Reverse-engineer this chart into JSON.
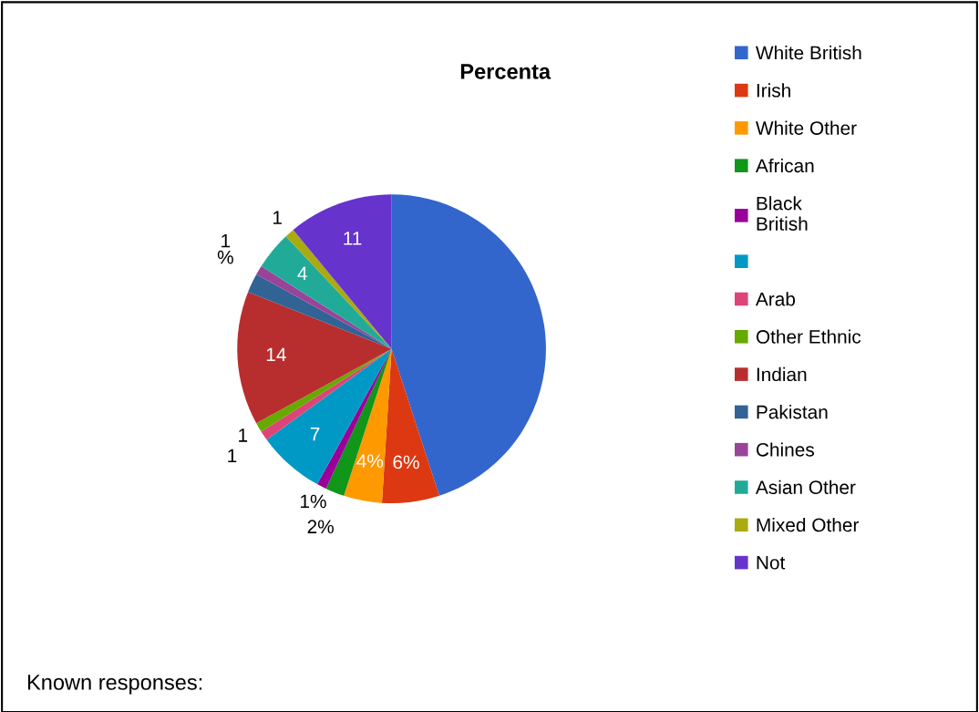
{
  "chart_data": {
    "type": "pie",
    "title": "Percenta",
    "categories": [
      "White British",
      "Irish",
      "White Other",
      "African",
      "Black\nBritish",
      null,
      "Arab",
      "Other Ethnic",
      "Indian",
      "Pakistan",
      "Chines",
      "Asian Other",
      "Mixed Other",
      "Not"
    ],
    "values": [
      45,
      6,
      4,
      2,
      1,
      7,
      1,
      1,
      14,
      2,
      1,
      4,
      1,
      11
    ],
    "colors": [
      "#3366cc",
      "#dc3912",
      "#ff9900",
      "#109618",
      "#990099",
      "#0099c6",
      "#dd4477",
      "#66aa00",
      "#b82e2e",
      "#316395",
      "#994499",
      "#22aa99",
      "#aaaa11",
      "#6633cc"
    ],
    "value_labels": [
      null,
      "6%",
      "4%",
      "2%",
      "1%",
      "7",
      "1",
      "1",
      "14",
      null,
      "1\n%",
      "4",
      "1",
      "11"
    ],
    "legend": "right",
    "annotations": [
      "Known responses:"
    ]
  }
}
